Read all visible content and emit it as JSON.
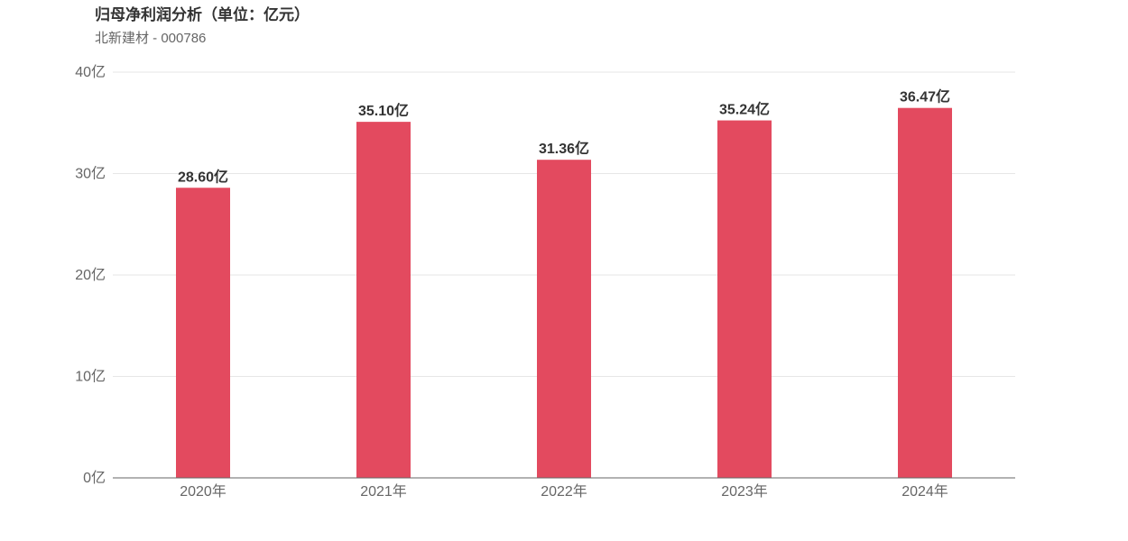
{
  "header": {
    "title": "归母净利润分析（单位：亿元）",
    "subtitle": "北新建材 - 000786"
  },
  "chart_data": {
    "type": "bar",
    "title": "归母净利润分析（单位：亿元）",
    "subtitle": "北新建材 - 000786",
    "categories": [
      "2020年",
      "2021年",
      "2022年",
      "2023年",
      "2024年"
    ],
    "values": [
      28.6,
      35.1,
      31.36,
      35.24,
      36.47
    ],
    "data_labels": [
      "28.60亿",
      "35.10亿",
      "31.36亿",
      "35.24亿",
      "36.47亿"
    ],
    "y_ticks": [
      0,
      10,
      20,
      30,
      40
    ],
    "y_tick_labels": [
      "0亿",
      "10亿",
      "20亿",
      "30亿",
      "40亿"
    ],
    "ylim": [
      0,
      40
    ],
    "xlabel": "",
    "ylabel": "",
    "grid": true,
    "bar_color": "#e34a5f",
    "gridline_color": "#e6e6e6",
    "axis_color": "#666666"
  }
}
